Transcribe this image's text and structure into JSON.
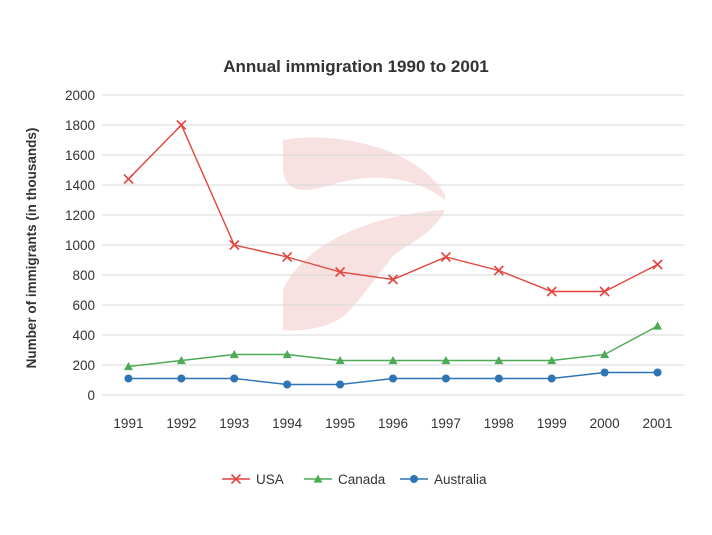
{
  "chart_data": {
    "type": "line",
    "title": "Annual immigration 1990 to 2001",
    "xlabel": "",
    "ylabel": "Number of immigrants (in thousands)",
    "categories": [
      "1991",
      "1992",
      "1993",
      "1994",
      "1995",
      "1996",
      "1997",
      "1998",
      "1999",
      "2000",
      "2001"
    ],
    "ylim": [
      0,
      2000
    ],
    "yticks": [
      "0",
      "200",
      "400",
      "600",
      "800",
      "1000",
      "1200",
      "1400",
      "1600",
      "1800",
      "2000"
    ],
    "grid": true,
    "legend_position": "bottom",
    "series": [
      {
        "name": "USA",
        "marker": "x",
        "color": "#e3443d",
        "values": [
          1440,
          1800,
          1000,
          920,
          820,
          770,
          920,
          830,
          690,
          690,
          870
        ]
      },
      {
        "name": "Canada",
        "marker": "triangle",
        "color": "#4daa57",
        "values": [
          190,
          230,
          270,
          270,
          230,
          230,
          230,
          230,
          230,
          270,
          460
        ]
      },
      {
        "name": "Australia",
        "marker": "circle",
        "color": "#2e75b6",
        "values": [
          110,
          110,
          110,
          70,
          70,
          110,
          110,
          110,
          110,
          150,
          150
        ]
      }
    ]
  }
}
